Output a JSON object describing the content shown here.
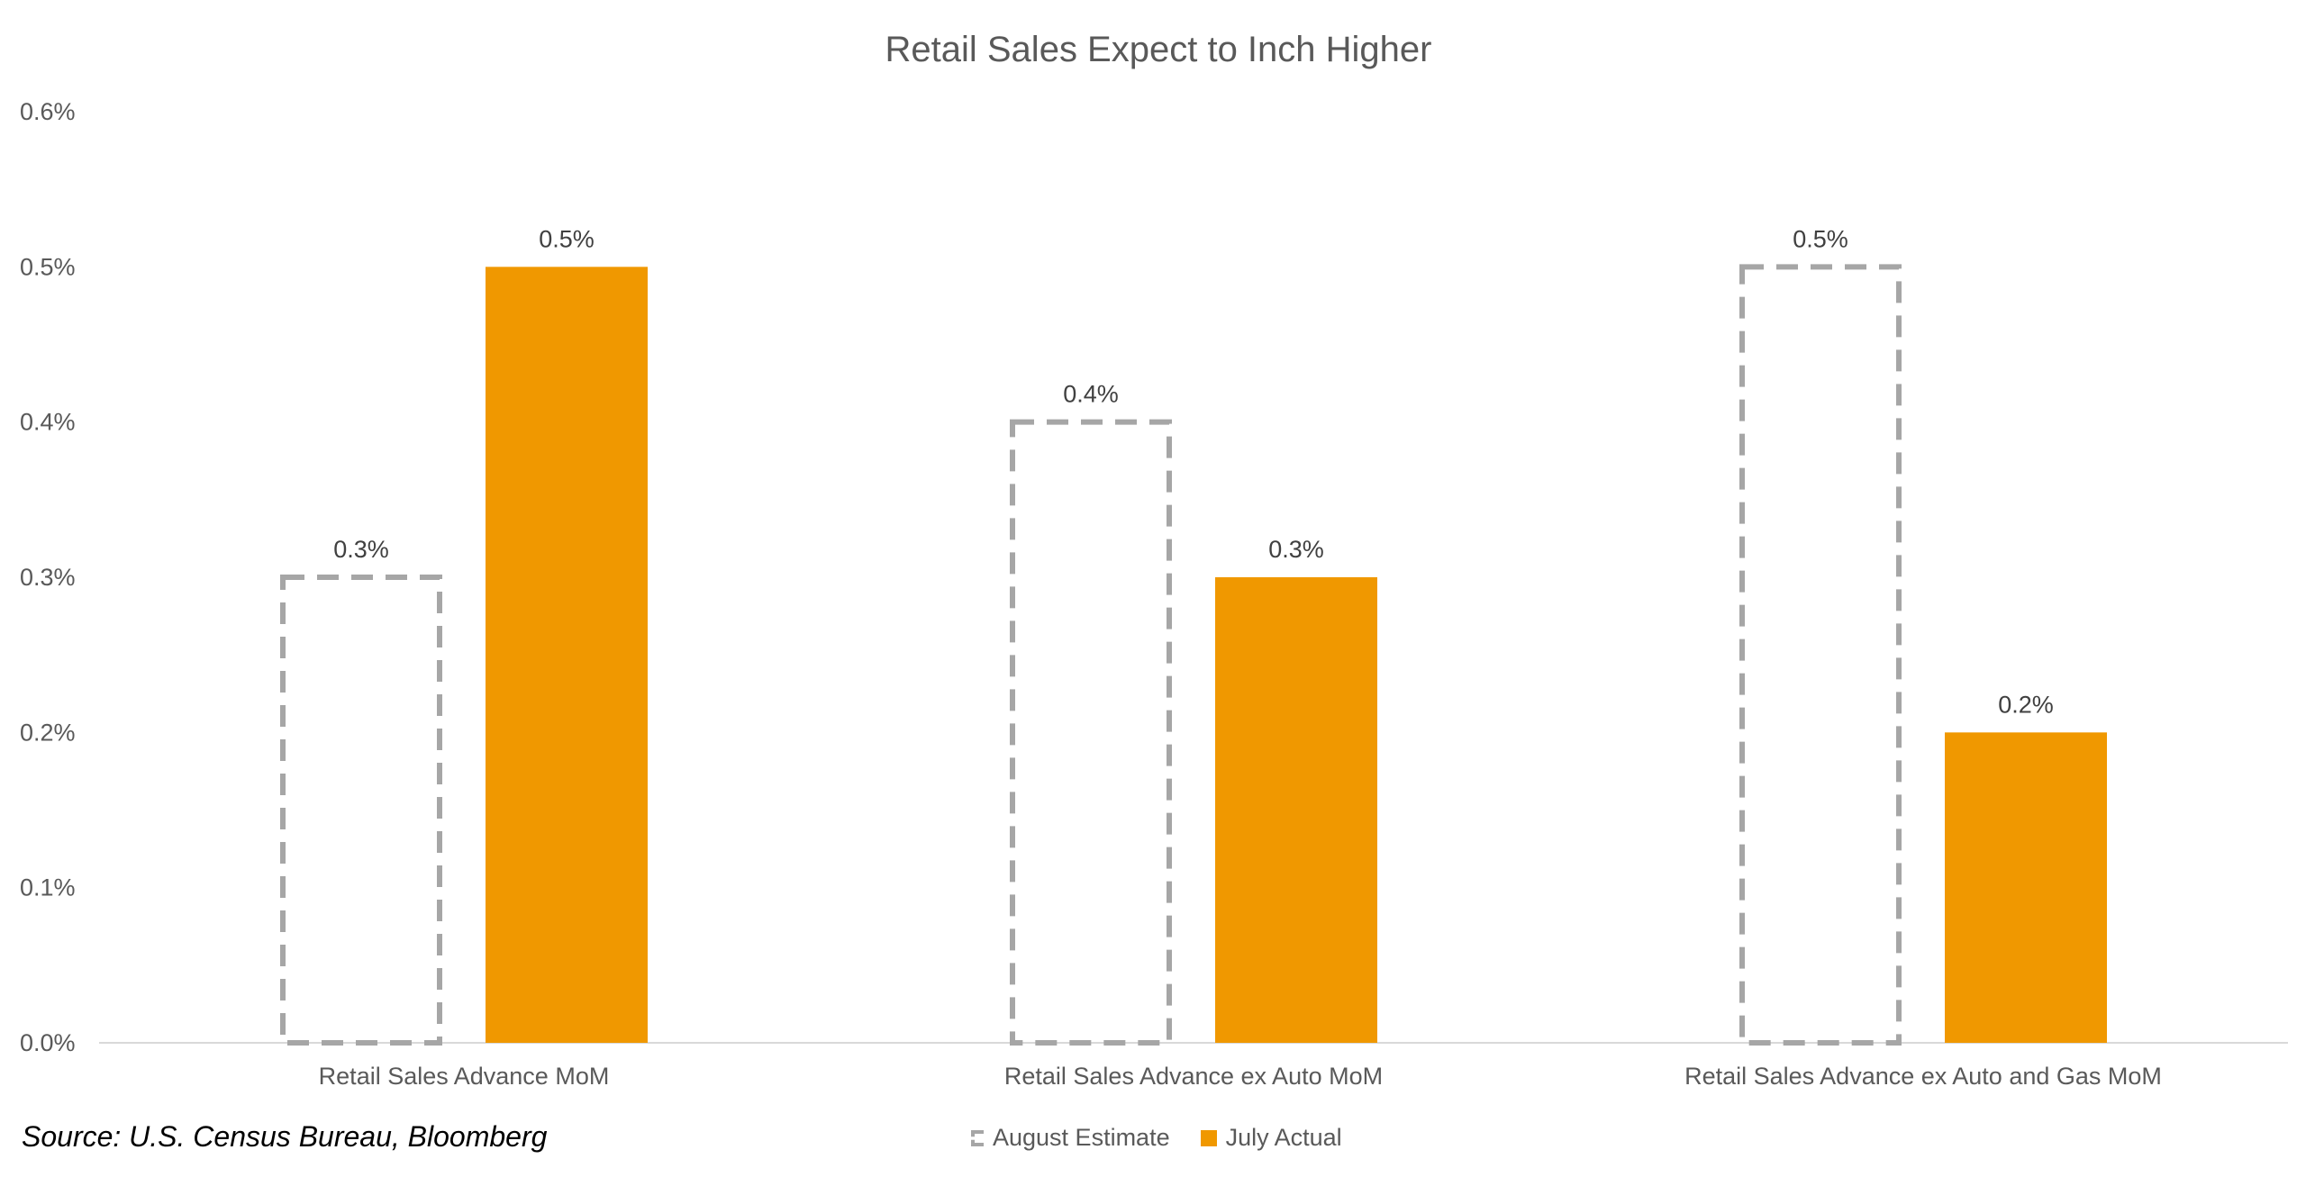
{
  "source_note": "Source: U.S. Census Bureau, Bloomberg",
  "colors": {
    "estimate_border": "#a6a6a6",
    "actual_fill": "#f09800",
    "axis_line": "#d9d9d9"
  },
  "chart_data": {
    "type": "bar",
    "title": "Retail Sales Expect to Inch Higher",
    "xlabel": "",
    "ylabel": "",
    "ylim": [
      0,
      0.6
    ],
    "y_ticks": [
      0.0,
      0.1,
      0.2,
      0.3,
      0.4,
      0.5,
      0.6
    ],
    "y_tick_labels": [
      "0.0%",
      "0.1%",
      "0.2%",
      "0.3%",
      "0.4%",
      "0.5%",
      "0.6%"
    ],
    "grid": false,
    "legend_position": "bottom",
    "categories": [
      "Retail Sales Advance MoM",
      "Retail Sales Advance ex Auto MoM",
      "Retail Sales Advance ex Auto and Gas MoM"
    ],
    "series": [
      {
        "name": "August Estimate",
        "style": "dashed-outline",
        "values": [
          0.3,
          0.4,
          0.5
        ],
        "labels": [
          "0.3%",
          "0.4%",
          "0.5%"
        ]
      },
      {
        "name": "July Actual",
        "style": "solid",
        "values": [
          0.5,
          0.3,
          0.2
        ],
        "labels": [
          "0.5%",
          "0.3%",
          "0.2%"
        ]
      }
    ]
  }
}
